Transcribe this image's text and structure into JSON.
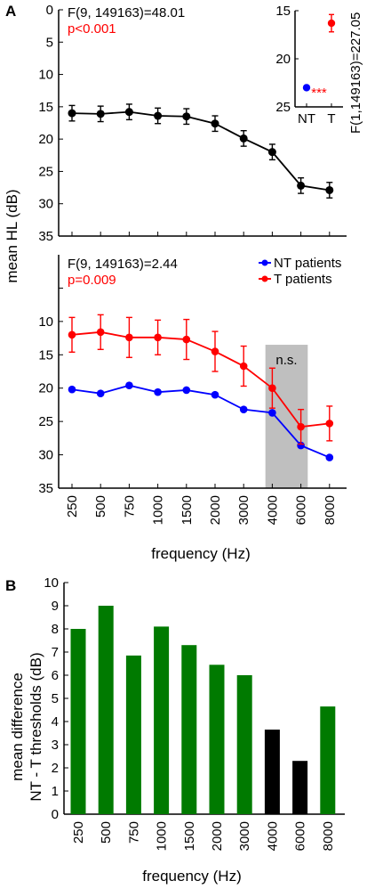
{
  "panels": {
    "a": "A",
    "b": "B"
  },
  "x_categories": [
    "250",
    "500",
    "750",
    "1000",
    "1500",
    "2000",
    "3000",
    "4000",
    "6000",
    "8000"
  ],
  "chart_data": [
    {
      "id": "A-top",
      "type": "line",
      "categories": [
        "250",
        "500",
        "750",
        "1000",
        "1500",
        "2000",
        "3000",
        "4000",
        "6000",
        "8000"
      ],
      "series": [
        {
          "values": [
            16.0,
            16.1,
            15.8,
            16.4,
            16.5,
            17.6,
            19.9,
            22.0,
            27.2,
            27.9
          ],
          "errors": [
            1.2,
            1.2,
            1.2,
            1.2,
            1.2,
            1.2,
            1.2,
            1.2,
            1.2,
            1.2
          ],
          "color": "#000000"
        }
      ],
      "ylabel": "mean HL (dB)",
      "ylim": [
        0,
        35
      ],
      "y_inverted": true,
      "yticks": [
        "0",
        "5",
        "10",
        "15",
        "20",
        "25",
        "30",
        "35"
      ],
      "stat_text": "F(9, 149163)=48.01",
      "p_text": "p<0.001",
      "p_color": "#ff0000"
    },
    {
      "id": "A-inset",
      "type": "scatter",
      "categories": [
        "NT",
        "T"
      ],
      "values": [
        23.0,
        16.3
      ],
      "errors": [
        0,
        0.9
      ],
      "colors": [
        "#0000ff",
        "#ff0000"
      ],
      "ylim": [
        15,
        25
      ],
      "y_inverted": true,
      "yticks": [
        "15",
        "20",
        "25"
      ],
      "stat_text": "F(1,149163)=227.05",
      "sig_text": "***",
      "sig_color": "#ff0000"
    },
    {
      "id": "A-bottom",
      "type": "line",
      "categories": [
        "250",
        "500",
        "750",
        "1000",
        "1500",
        "2000",
        "3000",
        "4000",
        "6000",
        "8000"
      ],
      "series": [
        {
          "name": "NT patients",
          "color": "#0000ff",
          "values": [
            20.2,
            20.8,
            19.6,
            20.6,
            20.3,
            21.0,
            23.2,
            23.7,
            28.6,
            30.4
          ]
        },
        {
          "name": "T patients",
          "color": "#ff0000",
          "values": [
            12.0,
            11.6,
            12.4,
            12.4,
            12.7,
            14.5,
            16.7,
            20.0,
            25.8,
            25.3
          ],
          "errors": [
            2.6,
            2.6,
            3.0,
            2.6,
            3.0,
            3.0,
            3.0,
            3.0,
            2.6,
            2.6
          ]
        }
      ],
      "ylim": [
        0,
        35
      ],
      "y_inverted": true,
      "yticks": [
        "",
        "10",
        "15",
        "20",
        "25",
        "30",
        "35"
      ],
      "xlabel": "frequency (Hz)",
      "shaded_region": {
        "from_category": "4000",
        "to_category": "6000",
        "y_from": 13.5,
        "y_to": 35,
        "label": "n.s."
      },
      "stat_text": "F(9, 149163)=2.44",
      "p_text": "p=0.009",
      "p_color": "#ff0000",
      "legend_position": "top-right"
    },
    {
      "id": "B",
      "type": "bar",
      "categories": [
        "250",
        "500",
        "750",
        "1000",
        "1500",
        "2000",
        "3000",
        "4000",
        "6000",
        "8000"
      ],
      "values": [
        8.0,
        9.0,
        6.85,
        8.1,
        7.3,
        6.45,
        6.0,
        3.65,
        2.3,
        4.65
      ],
      "colors": [
        "#007a00",
        "#007a00",
        "#007a00",
        "#007a00",
        "#007a00",
        "#007a00",
        "#007a00",
        "#000000",
        "#000000",
        "#007a00"
      ],
      "ylim": [
        0,
        10
      ],
      "yticks": [
        "0",
        "1",
        "2",
        "3",
        "4",
        "5",
        "6",
        "7",
        "8",
        "9",
        "10"
      ],
      "ylabel_line1": "mean difference",
      "ylabel_line2": "NT - T thresholds (dB)",
      "xlabel": "frequency (Hz)"
    }
  ]
}
